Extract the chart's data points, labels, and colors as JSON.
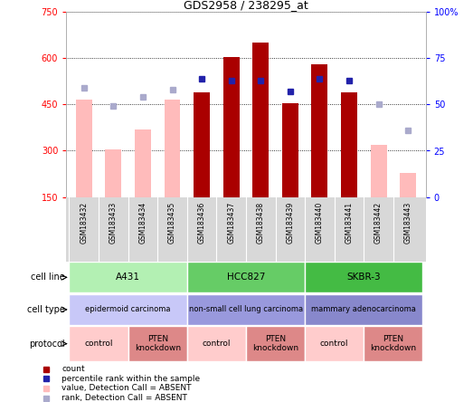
{
  "title": "GDS2958 / 238295_at",
  "samples": [
    "GSM183432",
    "GSM183433",
    "GSM183434",
    "GSM183435",
    "GSM183436",
    "GSM183437",
    "GSM183438",
    "GSM183439",
    "GSM183440",
    "GSM183441",
    "GSM183442",
    "GSM183443"
  ],
  "count_values": [
    null,
    null,
    null,
    null,
    490,
    605,
    650,
    455,
    580,
    490,
    null,
    null
  ],
  "absent_value_bars": [
    465,
    305,
    370,
    465,
    null,
    null,
    null,
    null,
    null,
    null,
    320,
    228
  ],
  "percentile_values": [
    null,
    null,
    null,
    null,
    64,
    63,
    63,
    57,
    64,
    63,
    null,
    null
  ],
  "absent_rank_values": [
    59,
    49,
    54,
    58,
    null,
    null,
    null,
    null,
    null,
    null,
    50,
    36
  ],
  "ylim": [
    150,
    750
  ],
  "y2lim": [
    0,
    100
  ],
  "yticks": [
    150,
    300,
    450,
    600,
    750
  ],
  "y2ticks": [
    0,
    25,
    50,
    75,
    100
  ],
  "cell_line_groups": [
    {
      "label": "A431",
      "start": 0,
      "end": 4,
      "color": "#b3f0b3"
    },
    {
      "label": "HCC827",
      "start": 4,
      "end": 8,
      "color": "#66cc66"
    },
    {
      "label": "SKBR-3",
      "start": 8,
      "end": 12,
      "color": "#44bb44"
    }
  ],
  "cell_type_groups": [
    {
      "label": "epidermoid carcinoma",
      "start": 0,
      "end": 4,
      "color": "#c8c8f8"
    },
    {
      "label": "non-small cell lung carcinoma",
      "start": 4,
      "end": 8,
      "color": "#9999dd"
    },
    {
      "label": "mammary adenocarcinoma",
      "start": 8,
      "end": 12,
      "color": "#8888cc"
    }
  ],
  "protocol_groups": [
    {
      "label": "control",
      "start": 0,
      "end": 2,
      "color": "#ffcccc"
    },
    {
      "label": "PTEN\nknockdown",
      "start": 2,
      "end": 4,
      "color": "#dd8888"
    },
    {
      "label": "control",
      "start": 4,
      "end": 6,
      "color": "#ffcccc"
    },
    {
      "label": "PTEN\nknockdown",
      "start": 6,
      "end": 8,
      "color": "#dd8888"
    },
    {
      "label": "control",
      "start": 8,
      "end": 10,
      "color": "#ffcccc"
    },
    {
      "label": "PTEN\nknockdown",
      "start": 10,
      "end": 12,
      "color": "#dd8888"
    }
  ],
  "count_color": "#aa0000",
  "absent_bar_color": "#ffbbbb",
  "percentile_color": "#2222aa",
  "absent_rank_color": "#aaaacc",
  "legend_items": [
    {
      "label": "count",
      "color": "#aa0000"
    },
    {
      "label": "percentile rank within the sample",
      "color": "#2222aa"
    },
    {
      "label": "value, Detection Call = ABSENT",
      "color": "#ffbbbb"
    },
    {
      "label": "rank, Detection Call = ABSENT",
      "color": "#aaaacc"
    }
  ],
  "row_labels": [
    "cell line",
    "cell type",
    "protocol"
  ]
}
